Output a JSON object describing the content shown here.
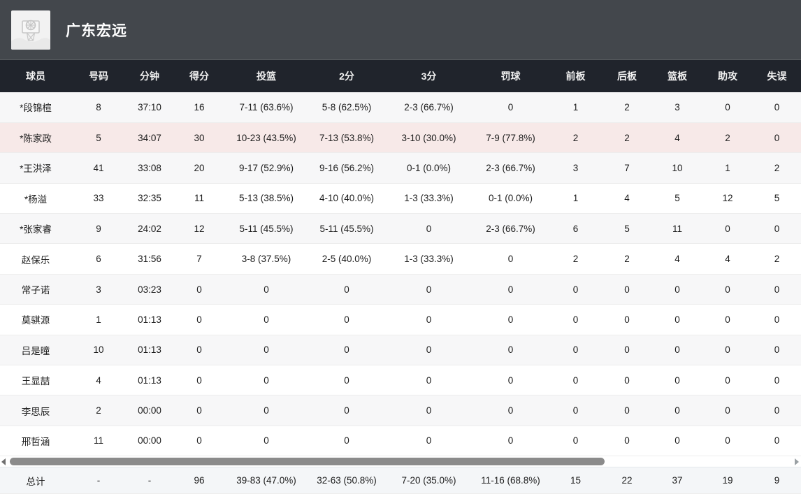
{
  "header": {
    "team_name": "广东宏远",
    "logo_icon": "basketball-hoop-icon"
  },
  "table": {
    "columns": [
      "球员",
      "号码",
      "分钟",
      "得分",
      "投篮",
      "2分",
      "3分",
      "罚球",
      "前板",
      "后板",
      "篮板",
      "助攻",
      "失误"
    ],
    "highlighted_row_index": 1,
    "rows": [
      [
        "*段锦楦",
        "8",
        "37:10",
        "16",
        "7-11 (63.6%)",
        "5-8 (62.5%)",
        "2-3 (66.7%)",
        "0",
        "1",
        "2",
        "3",
        "0",
        "0"
      ],
      [
        "*陈家政",
        "5",
        "34:07",
        "30",
        "10-23 (43.5%)",
        "7-13 (53.8%)",
        "3-10 (30.0%)",
        "7-9 (77.8%)",
        "2",
        "2",
        "4",
        "2",
        "0"
      ],
      [
        "*王洪泽",
        "41",
        "33:08",
        "20",
        "9-17 (52.9%)",
        "9-16 (56.2%)",
        "0-1 (0.0%)",
        "2-3 (66.7%)",
        "3",
        "7",
        "10",
        "1",
        "2"
      ],
      [
        "*杨溢",
        "33",
        "32:35",
        "11",
        "5-13 (38.5%)",
        "4-10 (40.0%)",
        "1-3 (33.3%)",
        "0-1 (0.0%)",
        "1",
        "4",
        "5",
        "12",
        "5"
      ],
      [
        "*张家睿",
        "9",
        "24:02",
        "12",
        "5-11 (45.5%)",
        "5-11 (45.5%)",
        "0",
        "2-3 (66.7%)",
        "6",
        "5",
        "11",
        "0",
        "0"
      ],
      [
        "赵保乐",
        "6",
        "31:56",
        "7",
        "3-8 (37.5%)",
        "2-5 (40.0%)",
        "1-3 (33.3%)",
        "0",
        "2",
        "2",
        "4",
        "4",
        "2"
      ],
      [
        "常子诺",
        "3",
        "03:23",
        "0",
        "0",
        "0",
        "0",
        "0",
        "0",
        "0",
        "0",
        "0",
        "0"
      ],
      [
        "莫骐源",
        "1",
        "01:13",
        "0",
        "0",
        "0",
        "0",
        "0",
        "0",
        "0",
        "0",
        "0",
        "0"
      ],
      [
        "吕是曈",
        "10",
        "01:13",
        "0",
        "0",
        "0",
        "0",
        "0",
        "0",
        "0",
        "0",
        "0",
        "0"
      ],
      [
        "王显喆",
        "4",
        "01:13",
        "0",
        "0",
        "0",
        "0",
        "0",
        "0",
        "0",
        "0",
        "0",
        "0"
      ],
      [
        "李思辰",
        "2",
        "00:00",
        "0",
        "0",
        "0",
        "0",
        "0",
        "0",
        "0",
        "0",
        "0",
        "0"
      ],
      [
        "邢哲涵",
        "11",
        "00:00",
        "0",
        "0",
        "0",
        "0",
        "0",
        "0",
        "0",
        "0",
        "0",
        "0"
      ]
    ],
    "total": [
      "总计",
      "-",
      "-",
      "96",
      "39-83 (47.0%)",
      "32-63 (50.8%)",
      "7-20 (35.0%)",
      "11-16 (68.8%)",
      "15",
      "22",
      "37",
      "19",
      "9"
    ]
  },
  "colors": {
    "topbar": "#43474c",
    "table-header": "#20242c",
    "row-alt": "#f7f7f8",
    "row-highlight": "#f7e9e8",
    "total-bg": "#f4f6f8",
    "scroll-thumb": "#8b8b8b"
  }
}
